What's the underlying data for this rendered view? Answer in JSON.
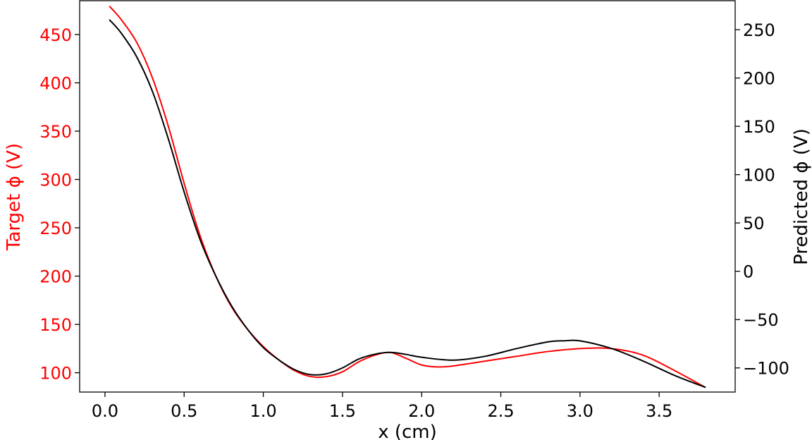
{
  "chart_data": {
    "type": "line",
    "xlabel": "x (cm)",
    "ylabel_left": "Target ϕ (V)",
    "ylabel_right": "Predicted ϕ (V)",
    "xlim": [
      -0.16,
      3.98
    ],
    "ylim_left": [
      80,
      485
    ],
    "ylim_right": [
      -125,
      280
    ],
    "x_ticks": [
      0.0,
      0.5,
      1.0,
      1.5,
      2.0,
      2.5,
      3.0,
      3.5
    ],
    "x_tick_labels": [
      "0.0",
      "0.5",
      "1.0",
      "1.5",
      "2.0",
      "2.5",
      "3.0",
      "3.5"
    ],
    "y_left_ticks": [
      100,
      150,
      200,
      250,
      300,
      350,
      400,
      450
    ],
    "y_left_tick_labels": [
      "100",
      "150",
      "200",
      "250",
      "300",
      "350",
      "400",
      "450"
    ],
    "y_right_ticks": [
      -100,
      -50,
      0,
      50,
      100,
      150,
      200,
      250
    ],
    "y_right_tick_labels": [
      "−100",
      "−50",
      "0",
      "50",
      "100",
      "150",
      "200",
      "250"
    ],
    "colors": {
      "target": "#ff0000",
      "predicted": "#000000",
      "left_axis_text": "#ff0000",
      "right_axis_text": "#000000"
    },
    "series": [
      {
        "axis": "left",
        "color": "#ff0000",
        "x": [
          0.03,
          0.1,
          0.2,
          0.3,
          0.4,
          0.5,
          0.6,
          0.7,
          0.8,
          0.9,
          1.0,
          1.1,
          1.2,
          1.3,
          1.4,
          1.5,
          1.6,
          1.7,
          1.8,
          1.9,
          2.0,
          2.1,
          2.2,
          2.4,
          2.6,
          2.8,
          3.0,
          3.2,
          3.4,
          3.6,
          3.79
        ],
        "y": [
          479,
          466,
          442,
          405,
          355,
          296,
          242,
          200,
          168,
          145,
          127,
          113,
          102,
          96,
          96,
          101,
          111,
          118,
          121,
          115,
          108,
          106,
          107,
          112,
          117,
          122,
          125,
          125,
          118,
          102,
          85
        ]
      },
      {
        "axis": "right",
        "color": "#000000",
        "x": [
          0.03,
          0.1,
          0.2,
          0.3,
          0.4,
          0.5,
          0.6,
          0.7,
          0.8,
          0.9,
          1.0,
          1.1,
          1.2,
          1.3,
          1.4,
          1.5,
          1.6,
          1.7,
          1.8,
          1.9,
          2.0,
          2.2,
          2.4,
          2.6,
          2.8,
          2.9,
          3.0,
          3.2,
          3.4,
          3.6,
          3.79
        ],
        "y": [
          260,
          247,
          222,
          186,
          137,
          82,
          33,
          -5,
          -36,
          -60,
          -79,
          -92,
          -102,
          -107,
          -106,
          -100,
          -91,
          -86,
          -84,
          -86,
          -89,
          -92,
          -88,
          -80,
          -73,
          -72,
          -72,
          -80,
          -93,
          -108,
          -120
        ]
      }
    ]
  }
}
